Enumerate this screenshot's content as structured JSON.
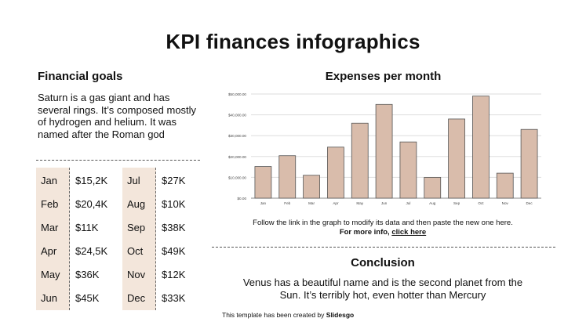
{
  "title": "KPI finances infographics",
  "goals": {
    "heading": "Financial goals",
    "text": "Saturn is a gas giant and has several rings. It’s composed mostly of hydrogen and helium. It was named after the Roman god"
  },
  "kpi_table": {
    "left": [
      {
        "month": "Jan",
        "value": "$15,2K"
      },
      {
        "month": "Feb",
        "value": "$20,4K"
      },
      {
        "month": "Mar",
        "value": "$11K"
      },
      {
        "month": "Apr",
        "value": "$24,5K"
      },
      {
        "month": "May",
        "value": "$36K"
      },
      {
        "month": "Jun",
        "value": "$45K"
      }
    ],
    "right": [
      {
        "month": "Jul",
        "value": "$27K"
      },
      {
        "month": "Aug",
        "value": "$10K"
      },
      {
        "month": "Sep",
        "value": "$38K"
      },
      {
        "month": "Oct",
        "value": "$49K"
      },
      {
        "month": "Nov",
        "value": "$12K"
      },
      {
        "month": "Dec",
        "value": "$33K"
      }
    ]
  },
  "chart_heading": "Expenses per month",
  "chart_data": {
    "type": "bar",
    "title": "",
    "xlabel": "",
    "ylabel": "",
    "categories": [
      "Jan",
      "Feb",
      "Mar",
      "Apr",
      "May",
      "Jun",
      "Jul",
      "Aug",
      "Sep",
      "Oct",
      "Nov",
      "Dec"
    ],
    "values": [
      15200,
      20400,
      11000,
      24500,
      36000,
      45000,
      27000,
      10000,
      38000,
      49000,
      12000,
      33000
    ],
    "ylim": [
      0,
      50000
    ],
    "yticks": [
      "$0.00",
      "$10,000.00",
      "$20,000.00",
      "$30,000.00",
      "$40,000.00",
      "$50,000.00"
    ],
    "grid": true,
    "bar_color": "#d9bcab",
    "bar_edge_color": "#555555"
  },
  "chart_note": {
    "line1": "Follow the link in the graph to modify its data and then paste the new one here.",
    "line2_prefix": "For more info, ",
    "link_text": "click here"
  },
  "conclusion": {
    "heading": "Conclusion",
    "text": "Venus has a beautiful name and is the second planet from the Sun. It’s terribly hot, even hotter than Mercury"
  },
  "credit": {
    "prefix": "This template has been created by ",
    "brand": "Slidesgo"
  }
}
